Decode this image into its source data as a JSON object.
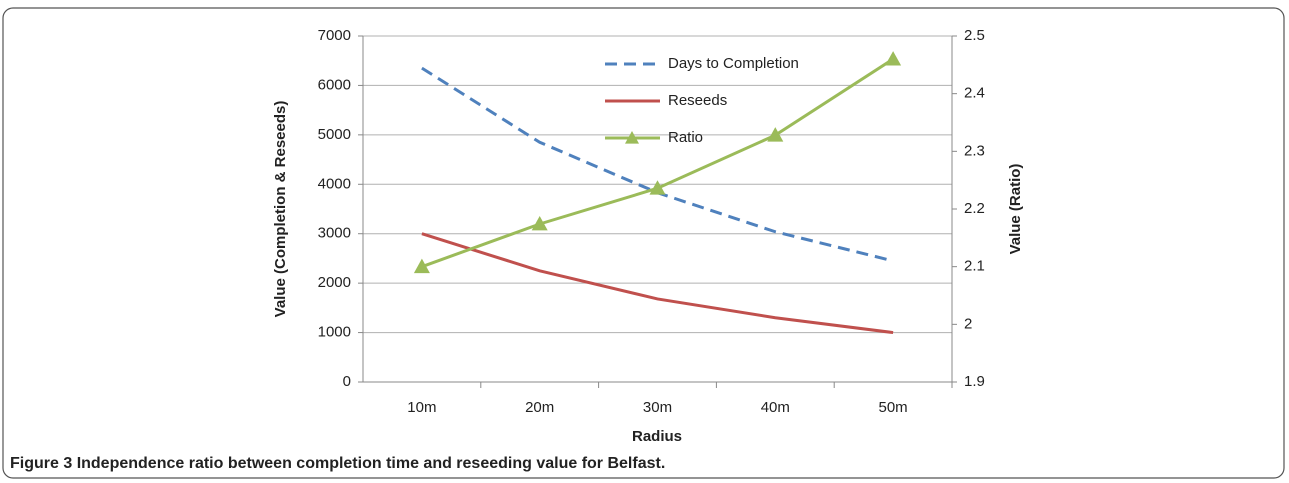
{
  "chart_data": {
    "type": "line",
    "categories": [
      "10m",
      "20m",
      "30m",
      "40m",
      "50m"
    ],
    "series": [
      {
        "name": "Days to Completion",
        "color": "#4f81bd",
        "dash": true,
        "values": [
          6350,
          4850,
          3830,
          3040,
          2450
        ]
      },
      {
        "name": "Reseeds",
        "color": "#c0504d",
        "values": [
          3000,
          2250,
          1680,
          1300,
          1000
        ]
      },
      {
        "name": "Ratio",
        "color": "#9bbb59",
        "axis": "y2",
        "marker": "triangle",
        "values": [
          2.1,
          2.174,
          2.236,
          2.328,
          2.46
        ]
      }
    ],
    "ylim": [
      0,
      7000
    ],
    "yticks": [
      0,
      1000,
      2000,
      3000,
      4000,
      5000,
      6000,
      7000
    ],
    "y2lim": [
      1.9,
      2.5
    ],
    "y2ticks": [
      1.9,
      2,
      2.1,
      2.2,
      2.3,
      2.4,
      2.5
    ],
    "xlabel": "Radius",
    "ylabel": "Value (Completion & Reseeds)",
    "y2label": "Value (Ratio)",
    "grid": true,
    "caption_label": "Figure 3",
    "caption": "Independence ratio between completion time and reseeding value for Belfast."
  }
}
